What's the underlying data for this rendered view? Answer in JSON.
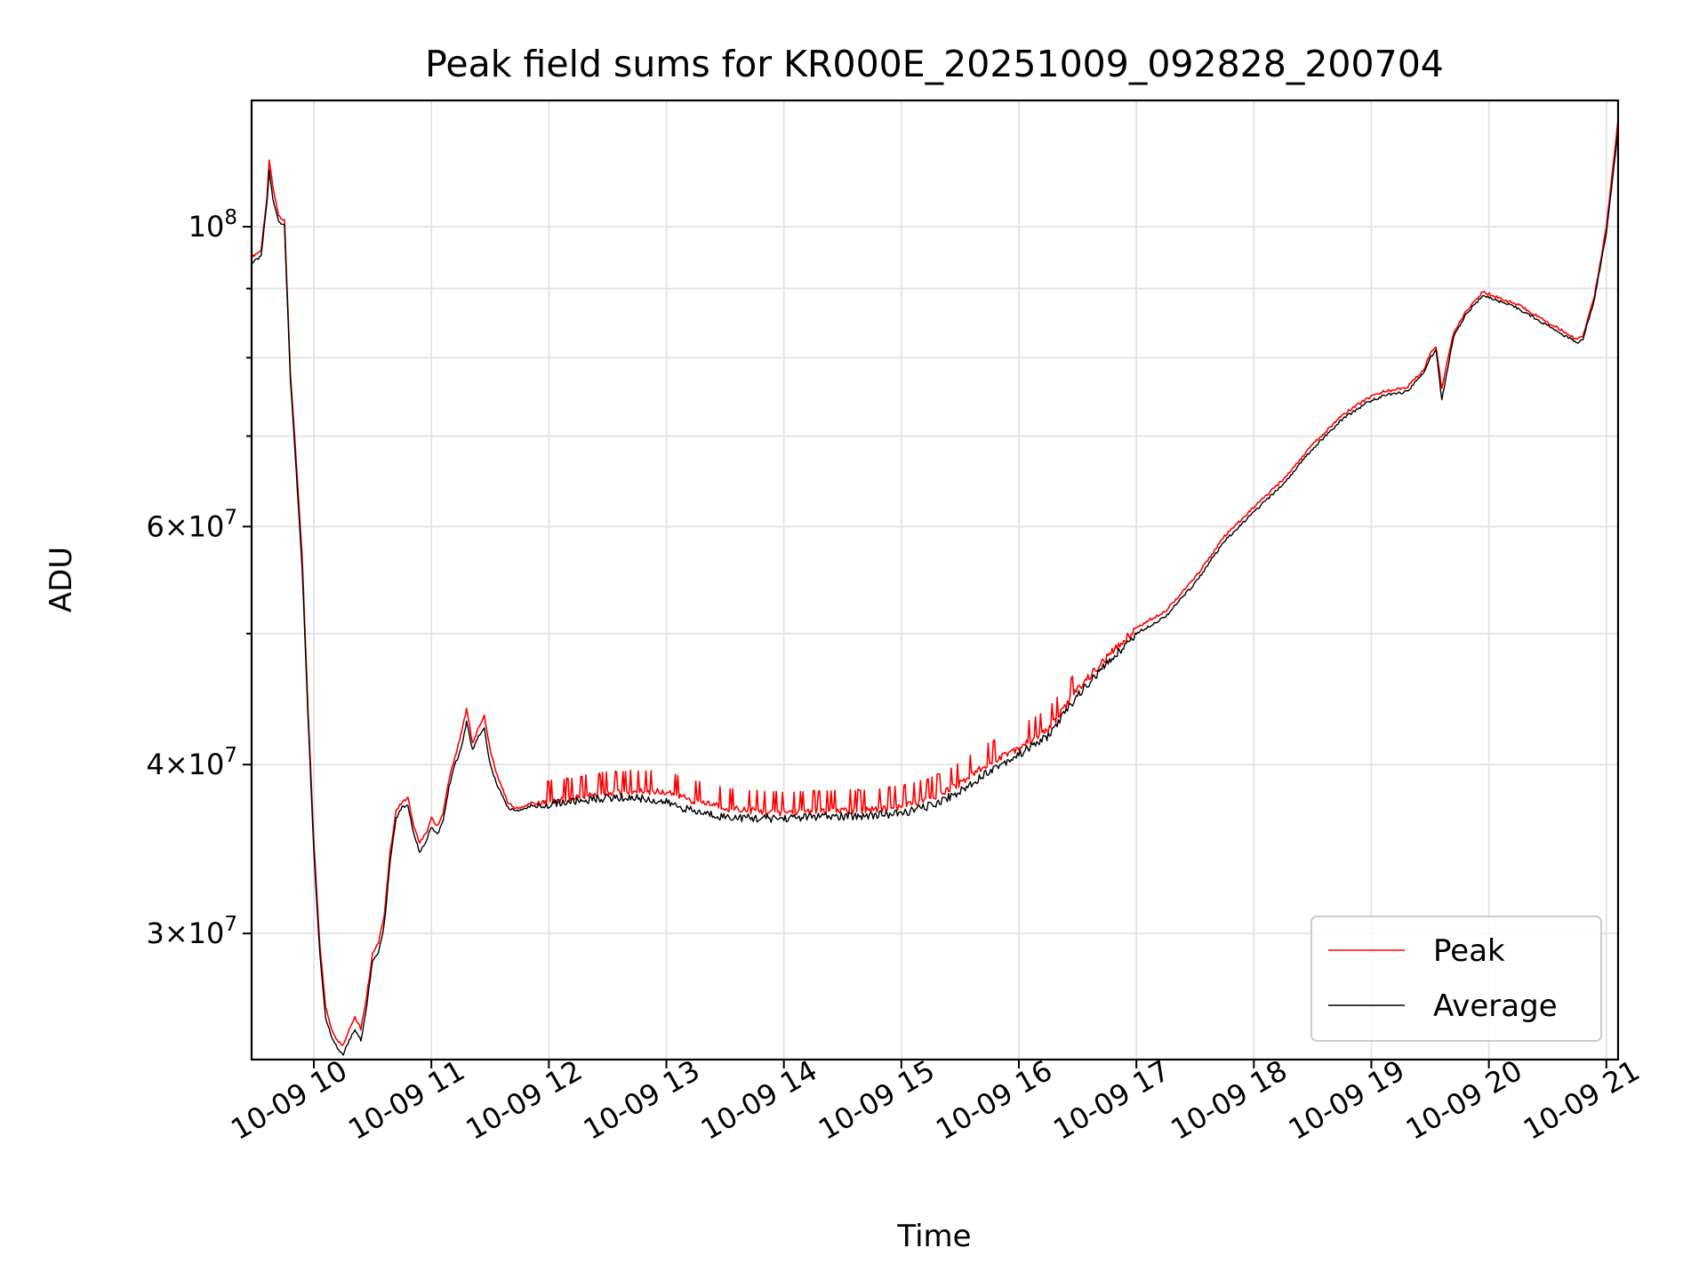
{
  "chart_data": {
    "type": "line",
    "title": "Peak field sums for KR000E_20251009_092828_200704",
    "xlabel": "Time",
    "ylabel": "ADU",
    "yscale": "log",
    "ylim": [
      24200000,
      124000000
    ],
    "xlim_hours": [
      9.47,
      21.1
    ],
    "x_tick_hours": [
      10,
      11,
      12,
      13,
      14,
      15,
      16,
      17,
      18,
      19,
      20,
      21
    ],
    "x_tick_labels": [
      "10-09 10",
      "10-09 11",
      "10-09 12",
      "10-09 13",
      "10-09 14",
      "10-09 15",
      "10-09 16",
      "10-09 17",
      "10-09 18",
      "10-09 19",
      "10-09 20",
      "10-09 21"
    ],
    "y_major_ticks": [
      {
        "value": 30000000,
        "mantissa": "3",
        "exponent": "7"
      },
      {
        "value": 40000000,
        "mantissa": "4",
        "exponent": "7"
      },
      {
        "value": 60000000,
        "mantissa": "6",
        "exponent": "7"
      },
      {
        "value": 100000000,
        "mantissa": "",
        "exponent": "8"
      }
    ],
    "y_minor_ticks": [
      50000000,
      70000000,
      80000000,
      90000000
    ],
    "grid": true,
    "legend_position": "lower-right",
    "legend": [
      "Peak",
      "Average"
    ],
    "series": [
      {
        "name": "Peak",
        "color": "#ff0000",
        "x_hours": [
          9.47,
          9.55,
          9.6,
          9.62,
          9.65,
          9.7,
          9.75,
          9.8,
          9.85,
          9.9,
          9.95,
          10.0,
          10.05,
          10.1,
          10.15,
          10.2,
          10.25,
          10.3,
          10.35,
          10.4,
          10.45,
          10.5,
          10.55,
          10.6,
          10.65,
          10.7,
          10.75,
          10.8,
          10.85,
          10.9,
          10.95,
          11.0,
          11.05,
          11.1,
          11.15,
          11.2,
          11.25,
          11.3,
          11.35,
          11.4,
          11.45,
          11.5,
          11.55,
          11.6,
          11.65,
          11.7,
          11.75,
          11.8,
          11.85,
          11.9,
          11.95,
          12.0,
          12.25,
          12.5,
          12.75,
          13.0,
          13.25,
          13.5,
          13.75,
          14.0,
          14.25,
          14.5,
          14.75,
          15.0,
          15.25,
          15.5,
          15.75,
          16.0,
          16.25,
          16.5,
          16.75,
          17.0,
          17.25,
          17.5,
          17.75,
          18.0,
          18.25,
          18.5,
          18.75,
          18.95,
          19.1,
          19.3,
          19.45,
          19.5,
          19.55,
          19.6,
          19.7,
          19.8,
          19.95,
          20.1,
          20.25,
          20.4,
          20.55,
          20.7,
          20.75,
          20.8,
          20.9,
          21.0,
          21.1
        ],
        "values": [
          95000000,
          96000000,
          105000000,
          112000000,
          107000000,
          102000000,
          101000000,
          78000000,
          67000000,
          57000000,
          44000000,
          35000000,
          29500000,
          26500000,
          25500000,
          25000000,
          24800000,
          25500000,
          26000000,
          25500000,
          27000000,
          29000000,
          29500000,
          31000000,
          34500000,
          37000000,
          37500000,
          37800000,
          36000000,
          35000000,
          35500000,
          36500000,
          36000000,
          36800000,
          39000000,
          40500000,
          42000000,
          44000000,
          41500000,
          42500000,
          43500000,
          41000000,
          39500000,
          38500000,
          37500000,
          37200000,
          37100000,
          37300000,
          37500000,
          37400000,
          37500000,
          37600000,
          37900000,
          38200000,
          38300000,
          38200000,
          37600000,
          37200000,
          37000000,
          36900000,
          37000000,
          37000000,
          37100000,
          37300000,
          37800000,
          38800000,
          40200000,
          41200000,
          42500000,
          45500000,
          48000000,
          50500000,
          52000000,
          55000000,
          59000000,
          62000000,
          65000000,
          69000000,
          72500000,
          74500000,
          75500000,
          76000000,
          78500000,
          80500000,
          81500000,
          76000000,
          83500000,
          86500000,
          89500000,
          88500000,
          87500000,
          86000000,
          84500000,
          83000000,
          82500000,
          83000000,
          89000000,
          100000000,
          120000000
        ]
      },
      {
        "name": "Average",
        "color": "#000000",
        "x_hours": [
          9.47,
          9.55,
          9.6,
          9.62,
          9.65,
          9.7,
          9.75,
          9.8,
          9.85,
          9.9,
          9.95,
          10.0,
          10.05,
          10.1,
          10.15,
          10.2,
          10.25,
          10.3,
          10.35,
          10.4,
          10.45,
          10.5,
          10.55,
          10.6,
          10.65,
          10.7,
          10.75,
          10.8,
          10.85,
          10.9,
          10.95,
          11.0,
          11.05,
          11.1,
          11.15,
          11.2,
          11.25,
          11.3,
          11.35,
          11.4,
          11.45,
          11.5,
          11.55,
          11.6,
          11.65,
          11.7,
          11.75,
          11.8,
          11.85,
          11.9,
          11.95,
          12.0,
          12.25,
          12.5,
          12.75,
          13.0,
          13.25,
          13.5,
          13.75,
          14.0,
          14.25,
          14.5,
          14.75,
          15.0,
          15.25,
          15.5,
          15.75,
          16.0,
          16.25,
          16.5,
          16.75,
          17.0,
          17.25,
          17.5,
          17.75,
          18.0,
          18.25,
          18.5,
          18.75,
          18.95,
          19.1,
          19.3,
          19.45,
          19.5,
          19.55,
          19.6,
          19.7,
          19.8,
          19.95,
          20.1,
          20.25,
          20.4,
          20.55,
          20.7,
          20.75,
          20.8,
          20.9,
          21.0,
          21.1
        ],
        "values": [
          94000000,
          95000000,
          104000000,
          110000000,
          105000000,
          101000000,
          100000000,
          77000000,
          66000000,
          56000000,
          43500000,
          34500000,
          29000000,
          26000000,
          25200000,
          24700000,
          24400000,
          25000000,
          25500000,
          25000000,
          26500000,
          28700000,
          29000000,
          30500000,
          34000000,
          36500000,
          37200000,
          37300000,
          35500000,
          34500000,
          35000000,
          36000000,
          35500000,
          36300000,
          38500000,
          40000000,
          41000000,
          43000000,
          41000000,
          42000000,
          42500000,
          40000000,
          38800000,
          38000000,
          37200000,
          37000000,
          37000000,
          37100000,
          37300000,
          37200000,
          37300000,
          37400000,
          37600000,
          37800000,
          37800000,
          37500000,
          36900000,
          36600000,
          36500000,
          36500000,
          36600000,
          36600000,
          36700000,
          36800000,
          37300000,
          38200000,
          39600000,
          40700000,
          42000000,
          45000000,
          47500000,
          50000000,
          51500000,
          54500000,
          58500000,
          61500000,
          64500000,
          68500000,
          72000000,
          74000000,
          75000000,
          75500000,
          78000000,
          80000000,
          81000000,
          74500000,
          83000000,
          86000000,
          89000000,
          88000000,
          87000000,
          85500000,
          84000000,
          82500000,
          82000000,
          82500000,
          88500000,
          99000000,
          118000000
        ]
      }
    ]
  }
}
